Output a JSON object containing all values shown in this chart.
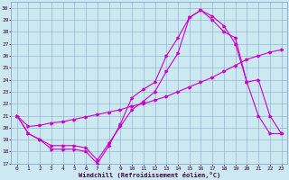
{
  "bg_color": "#cce8f0",
  "grid_color": "#88aacc",
  "line_color": "#cc00cc",
  "xlabel": "Windchill (Refroidissement éolien,°C)",
  "xlim": [
    -0.5,
    23.5
  ],
  "ylim": [
    17,
    30.5
  ],
  "xticks": [
    0,
    1,
    2,
    3,
    4,
    5,
    6,
    7,
    8,
    9,
    10,
    11,
    12,
    13,
    14,
    15,
    16,
    17,
    18,
    19,
    20,
    21,
    22,
    23
  ],
  "yticks": [
    17,
    18,
    19,
    20,
    21,
    22,
    23,
    24,
    25,
    26,
    27,
    28,
    29,
    30
  ],
  "line1_x": [
    0,
    1,
    2,
    3,
    4,
    5,
    6,
    7,
    8,
    9,
    10,
    11,
    12,
    13,
    14,
    15,
    16,
    17,
    18,
    19,
    20,
    21,
    22,
    23
  ],
  "line1_y": [
    21.0,
    19.5,
    19.0,
    18.2,
    18.2,
    18.2,
    18.0,
    17.0,
    18.5,
    20.3,
    22.5,
    23.2,
    23.8,
    26.0,
    27.5,
    29.2,
    29.8,
    29.3,
    28.5,
    27.0,
    23.8,
    21.0,
    19.5,
    19.5
  ],
  "line2_x": [
    0,
    1,
    2,
    3,
    4,
    5,
    6,
    7,
    8,
    9,
    10,
    11,
    12,
    13,
    14,
    15,
    16,
    17,
    18,
    19,
    20,
    21,
    22,
    23
  ],
  "line2_y": [
    21.0,
    19.5,
    19.0,
    18.5,
    18.5,
    18.5,
    18.3,
    17.3,
    18.7,
    20.1,
    21.5,
    22.2,
    23.0,
    24.7,
    26.2,
    29.2,
    29.8,
    29.0,
    28.0,
    27.5,
    23.8,
    24.0,
    21.0,
    19.5
  ],
  "line3_x": [
    0,
    1,
    2,
    3,
    4,
    5,
    6,
    7,
    8,
    9,
    10,
    11,
    12,
    13,
    14,
    15,
    16,
    17,
    18,
    19,
    20,
    21,
    22,
    23
  ],
  "line3_y": [
    21.0,
    20.1,
    20.2,
    20.4,
    20.5,
    20.7,
    20.9,
    21.1,
    21.3,
    21.5,
    21.8,
    22.0,
    22.3,
    22.6,
    23.0,
    23.4,
    23.8,
    24.2,
    24.7,
    25.2,
    25.7,
    26.0,
    26.3,
    26.5
  ]
}
